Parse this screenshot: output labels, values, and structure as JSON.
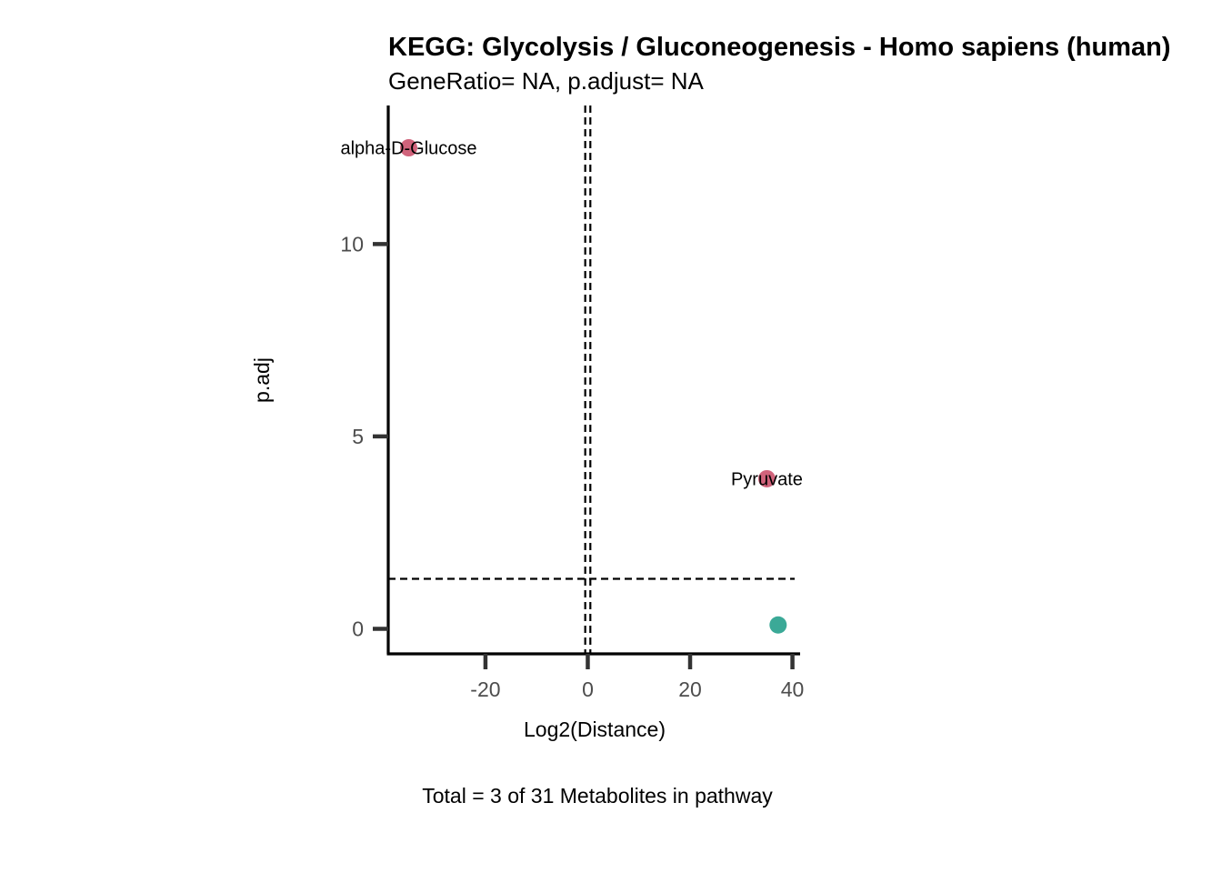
{
  "chart_data": {
    "type": "scatter",
    "title": "KEGG: Glycolysis / Gluconeogenesis - Homo sapiens (human)",
    "subtitle": "GeneRatio= NA, p.adjust= NA",
    "xlabel": "Log2(Distance)",
    "ylabel": "p.adj",
    "caption": "Total = 3 of 31 Metabolites in pathway",
    "xlim": [
      -39,
      41.5
    ],
    "ylim": [
      -0.65,
      13.6
    ],
    "x_ticks": [
      -20,
      0,
      20,
      40
    ],
    "y_ticks": [
      0,
      5,
      10
    ],
    "x_tick_labels": [
      "-20",
      "0",
      "20",
      "40"
    ],
    "y_tick_labels": [
      "0",
      "5",
      "10"
    ],
    "grid": false,
    "reference_lines": {
      "vertical_x": [
        -0.5,
        0.5
      ],
      "horizontal_y": 1.3
    },
    "colors": {
      "significant": "#d0637b",
      "not_significant": "#3ba997",
      "axis": "#000000",
      "tick": "#333333"
    },
    "points": [
      {
        "x": -35,
        "y": 12.5,
        "label": "alpha-D-Glucose",
        "group": "significant"
      },
      {
        "x": 35,
        "y": 3.9,
        "label": "Pyruvate",
        "group": "significant"
      },
      {
        "x": 37.2,
        "y": 0.1,
        "label": "",
        "group": "not_significant"
      }
    ]
  }
}
